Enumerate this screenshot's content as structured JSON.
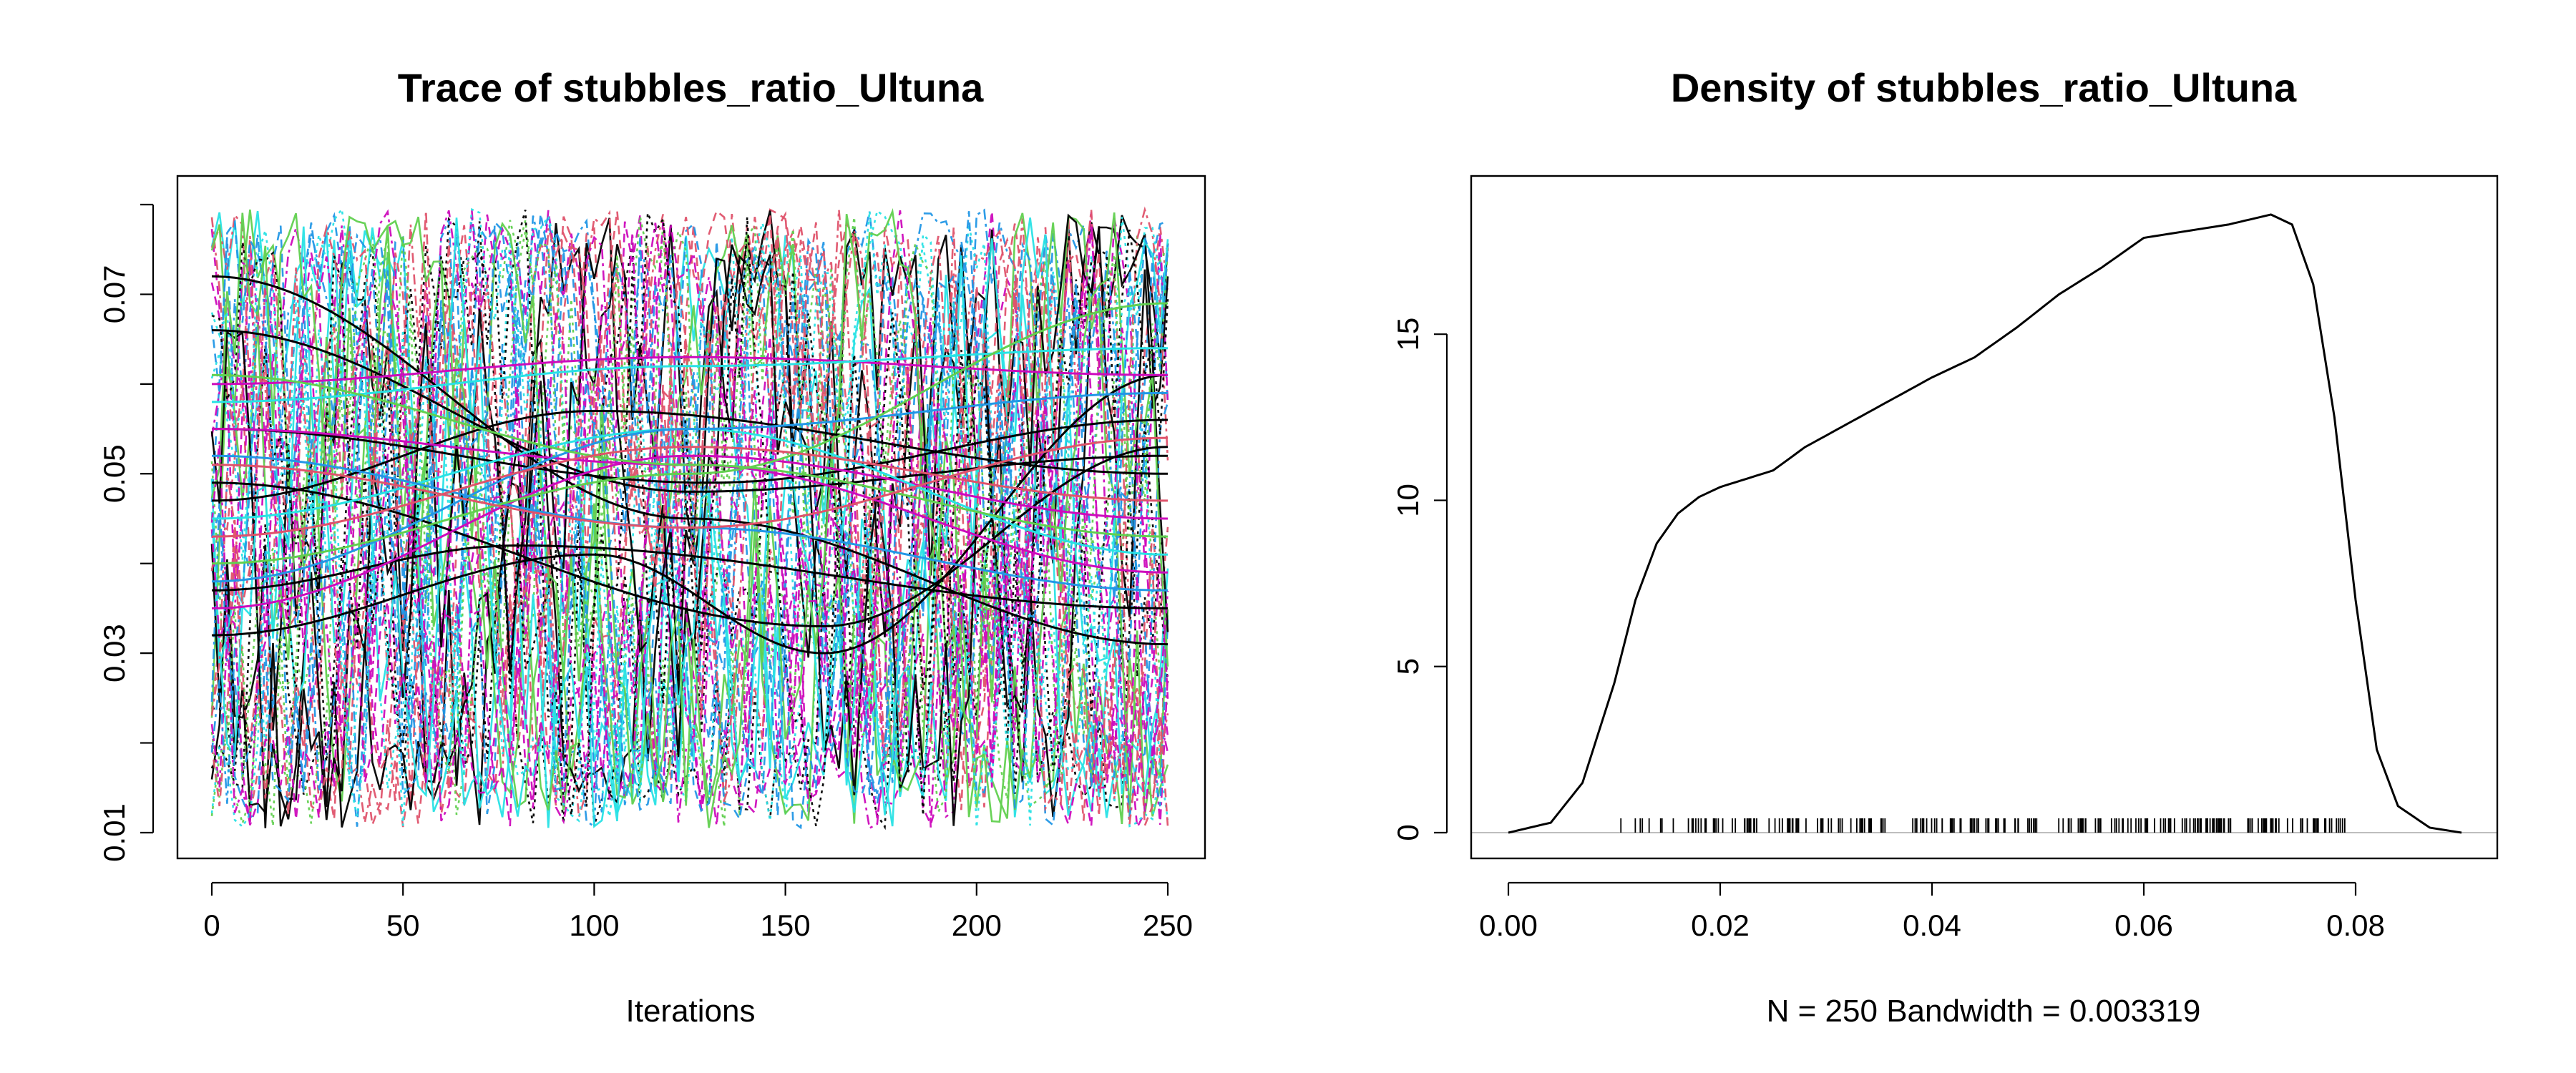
{
  "chart_data": [
    {
      "type": "line",
      "title": "Trace of stubbles_ratio_Ultuna",
      "xlabel": "Iterations",
      "ylabel": "",
      "xlim": [
        0,
        250
      ],
      "ylim": [
        0.01,
        0.08
      ],
      "xticks": [
        "0",
        "50",
        "100",
        "150",
        "200",
        "250"
      ],
      "yticks": [
        "0.01",
        "0.03",
        "0.05",
        "0.07"
      ],
      "grid": false,
      "colors": [
        "#000000",
        "#DF536B",
        "#61D04F",
        "#2297E6",
        "#28E2E5",
        "#CD0BBC"
      ],
      "smooth_trends": [
        {
          "color": "#000000",
          "x": [
            0,
            125,
            250
          ],
          "y": [
            0.072,
            0.045,
            0.031
          ]
        },
        {
          "color": "#000000",
          "x": [
            0,
            125,
            250
          ],
          "y": [
            0.066,
            0.048,
            0.052
          ]
        },
        {
          "color": "#000000",
          "x": [
            0,
            100,
            160,
            250
          ],
          "y": [
            0.032,
            0.041,
            0.03,
            0.061
          ]
        },
        {
          "color": "#000000",
          "x": [
            0,
            80,
            250
          ],
          "y": [
            0.037,
            0.042,
            0.035
          ]
        },
        {
          "color": "#000000",
          "x": [
            0,
            100,
            250
          ],
          "y": [
            0.047,
            0.057,
            0.05
          ]
        },
        {
          "color": "#000000",
          "x": [
            0,
            130,
            250
          ],
          "y": [
            0.055,
            0.049,
            0.056
          ]
        },
        {
          "color": "#000000",
          "x": [
            0,
            160,
            250
          ],
          "y": [
            0.049,
            0.033,
            0.053
          ]
        },
        {
          "color": "#CD0BBC",
          "x": [
            0,
            125,
            250
          ],
          "y": [
            0.06,
            0.063,
            0.061
          ]
        },
        {
          "color": "#CD0BBC",
          "x": [
            0,
            125,
            250
          ],
          "y": [
            0.035,
            0.052,
            0.045
          ]
        },
        {
          "color": "#CD0BBC",
          "x": [
            0,
            125,
            250
          ],
          "y": [
            0.055,
            0.051,
            0.039
          ]
        },
        {
          "color": "#28E2E5",
          "x": [
            0,
            125,
            250
          ],
          "y": [
            0.058,
            0.062,
            0.064
          ]
        },
        {
          "color": "#28E2E5",
          "x": [
            0,
            125,
            250
          ],
          "y": [
            0.045,
            0.055,
            0.041
          ]
        },
        {
          "color": "#2297E6",
          "x": [
            0,
            125,
            250
          ],
          "y": [
            0.038,
            0.055,
            0.059
          ]
        },
        {
          "color": "#2297E6",
          "x": [
            0,
            125,
            250
          ],
          "y": [
            0.052,
            0.044,
            0.037
          ]
        },
        {
          "color": "#61D04F",
          "x": [
            0,
            125,
            250
          ],
          "y": [
            0.04,
            0.05,
            0.069
          ]
        },
        {
          "color": "#61D04F",
          "x": [
            0,
            125,
            250
          ],
          "y": [
            0.061,
            0.051,
            0.043
          ]
        },
        {
          "color": "#DF536B",
          "x": [
            0,
            125,
            250
          ],
          "y": [
            0.051,
            0.044,
            0.054
          ]
        },
        {
          "color": "#DF536B",
          "x": [
            0,
            125,
            250
          ],
          "y": [
            0.043,
            0.053,
            0.047
          ]
        }
      ]
    },
    {
      "type": "line",
      "title": "Density of stubbles_ratio_Ultuna",
      "xlabel": "N = 250   Bandwidth = 0.003319",
      "ylabel": "",
      "xlim": [
        0,
        0.09
      ],
      "ylim": [
        0,
        19
      ],
      "xticks": [
        "0.00",
        "0.02",
        "0.04",
        "0.06",
        "0.08"
      ],
      "yticks": [
        "0",
        "5",
        "10",
        "15"
      ],
      "grid": false,
      "density": {
        "x": [
          0.0,
          0.004,
          0.007,
          0.01,
          0.012,
          0.014,
          0.016,
          0.018,
          0.02,
          0.022,
          0.025,
          0.028,
          0.032,
          0.036,
          0.04,
          0.044,
          0.048,
          0.052,
          0.056,
          0.06,
          0.064,
          0.068,
          0.072,
          0.074,
          0.076,
          0.078,
          0.08,
          0.082,
          0.084,
          0.087,
          0.09
        ],
        "y": [
          0.0,
          0.3,
          1.5,
          4.5,
          7.0,
          8.7,
          9.6,
          10.1,
          10.4,
          10.6,
          10.9,
          11.6,
          12.3,
          13.0,
          13.7,
          14.3,
          15.2,
          16.2,
          17.0,
          17.9,
          18.1,
          18.3,
          18.6,
          18.3,
          16.5,
          12.5,
          7.0,
          2.5,
          0.8,
          0.15,
          0.0
        ]
      },
      "rug_range": [
        0.01,
        0.079
      ],
      "rug_count": 250
    }
  ]
}
